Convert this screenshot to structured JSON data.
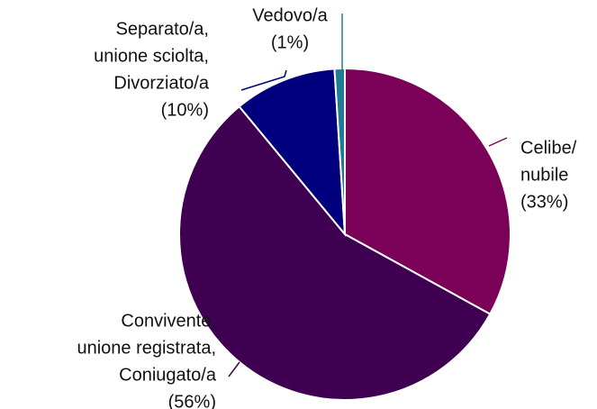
{
  "chart_data": {
    "type": "pie",
    "categories": [
      [
        "Celibe/",
        "nubile"
      ],
      [
        "Convivente,",
        "unione registrata,",
        "Coniugato/a"
      ],
      [
        "Separato/a,",
        "unione sciolta,",
        "Divorziato/a"
      ],
      [
        "Vedovo/a"
      ]
    ],
    "values": [
      33,
      56,
      10,
      1
    ],
    "value_labels": [
      "(33%)",
      "(56%)",
      "(10%)",
      "(1%)"
    ],
    "colors": [
      "#7a0058",
      "#3f0052",
      "#00007f",
      "#1f7a96"
    ]
  }
}
